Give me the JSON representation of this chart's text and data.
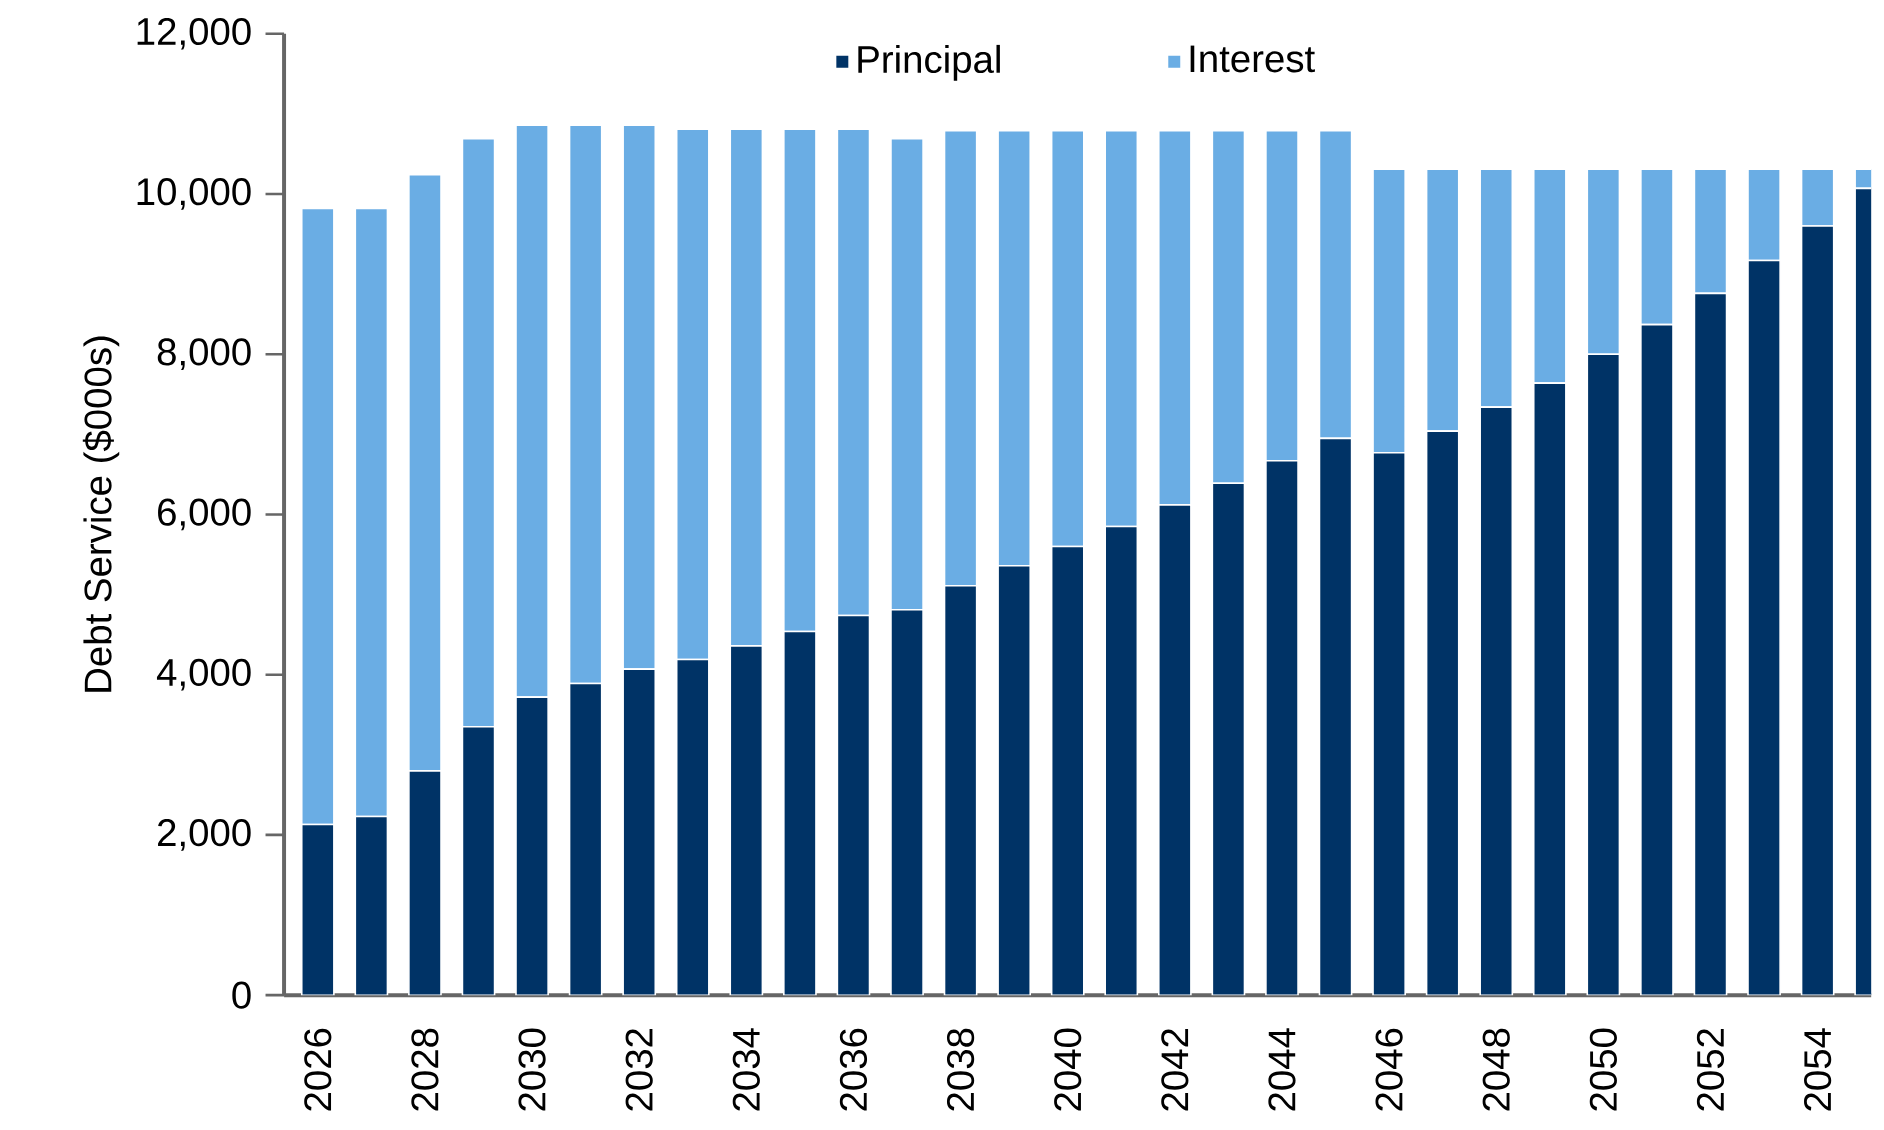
{
  "chart_data": {
    "type": "bar",
    "stacked": true,
    "ylabel": "Debt Service ($000s)",
    "categories": [
      "2026",
      null,
      "2028",
      null,
      "2030",
      null,
      "2032",
      null,
      "2034",
      null,
      "2036",
      null,
      "2038",
      null,
      "2040",
      null,
      "2042",
      null,
      "2044",
      null,
      "2046",
      null,
      "2048",
      null,
      "2050",
      null,
      "2052",
      null,
      "2054",
      null
    ],
    "series": [
      {
        "name": "Principal",
        "color": "#003366",
        "values": [
          2130,
          2230,
          2800,
          3350,
          3720,
          3890,
          4070,
          4190,
          4360,
          4540,
          4740,
          4810,
          5110,
          5360,
          5600,
          5850,
          6120,
          6390,
          6670,
          6950,
          6770,
          7040,
          7340,
          7640,
          8000,
          8370,
          8760,
          9170,
          9600,
          10070
        ]
      },
      {
        "name": "Interest",
        "color": "#6aade4",
        "values": [
          7690,
          7590,
          7440,
          7340,
          7140,
          6970,
          6790,
          6620,
          6450,
          6270,
          6070,
          5880,
          5680,
          5430,
          5190,
          4940,
          4670,
          4400,
          4120,
          3840,
          3540,
          3270,
          2970,
          2670,
          2310,
          1940,
          1550,
          1140,
          710,
          240
        ]
      }
    ],
    "ylim": [
      0,
      12000
    ],
    "yticks": [
      0,
      {
        "value": 2000,
        "label": "2,000"
      },
      {
        "value": 4000,
        "label": "4,000"
      },
      {
        "value": 6000,
        "label": "6,000"
      },
      {
        "value": 8000,
        "label": "8,000"
      },
      {
        "value": 10000,
        "label": "10,000"
      },
      {
        "value": 12000,
        "label": "12,000"
      }
    ],
    "legend": "top",
    "grid": false
  }
}
